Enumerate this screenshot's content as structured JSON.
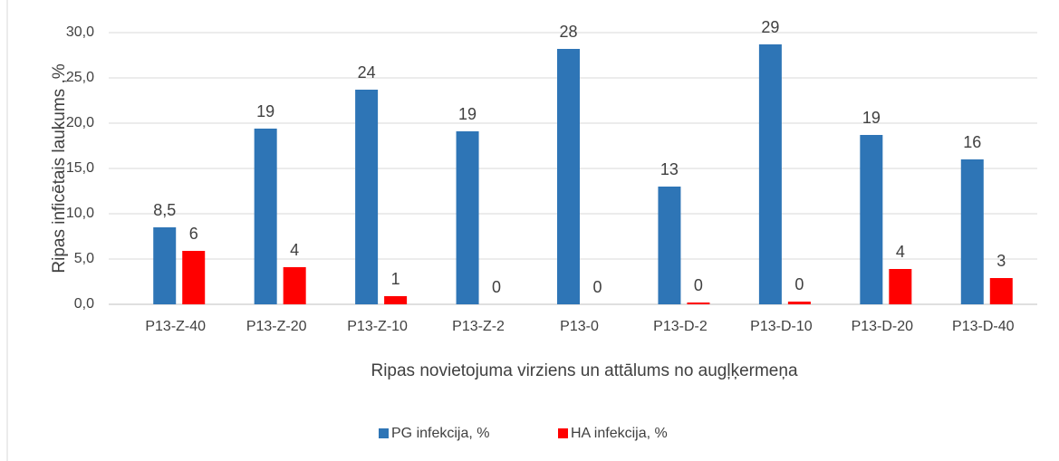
{
  "chart_data": {
    "type": "bar",
    "categories": [
      "P13-Z-40",
      "P13-Z-20",
      "P13-Z-10",
      "P13-Z-2",
      "P13-0",
      "P13-D-2",
      "P13-D-10",
      "P13-D-20",
      "P13-D-40"
    ],
    "series": [
      {
        "name": "PG infekcija, %",
        "color": "#2e75b6",
        "values": [
          8.5,
          19.4,
          23.7,
          19.1,
          28.2,
          13,
          28.7,
          18.7,
          16
        ],
        "value_labels": [
          "8,5",
          "19",
          "24",
          "19",
          "28",
          "13",
          "29",
          "19",
          "16"
        ]
      },
      {
        "name": "HA infekcija, %",
        "color": "#ff0000",
        "values": [
          5.9,
          4.1,
          0.9,
          0,
          0,
          0.2,
          0.3,
          3.9,
          2.9
        ],
        "value_labels": [
          "6",
          "4",
          "1",
          "0",
          "0",
          "0",
          "0",
          "4",
          "3"
        ]
      }
    ],
    "x_label": "Ripas novietojuma virziens un attālums no augļķermeņa",
    "y_label": "Ripas inficētais laukums ,%",
    "ylim": [
      0,
      30
    ],
    "yticks": [
      {
        "value": 0,
        "label": "0,0"
      },
      {
        "value": 5,
        "label": "5,0"
      },
      {
        "value": 10,
        "label": "10,0"
      },
      {
        "value": 15,
        "label": "15,0"
      },
      {
        "value": 20,
        "label": "20,0"
      },
      {
        "value": 25,
        "label": "25,0"
      },
      {
        "value": 30,
        "label": "30,0"
      }
    ],
    "grid": true,
    "legend": "bottom"
  }
}
